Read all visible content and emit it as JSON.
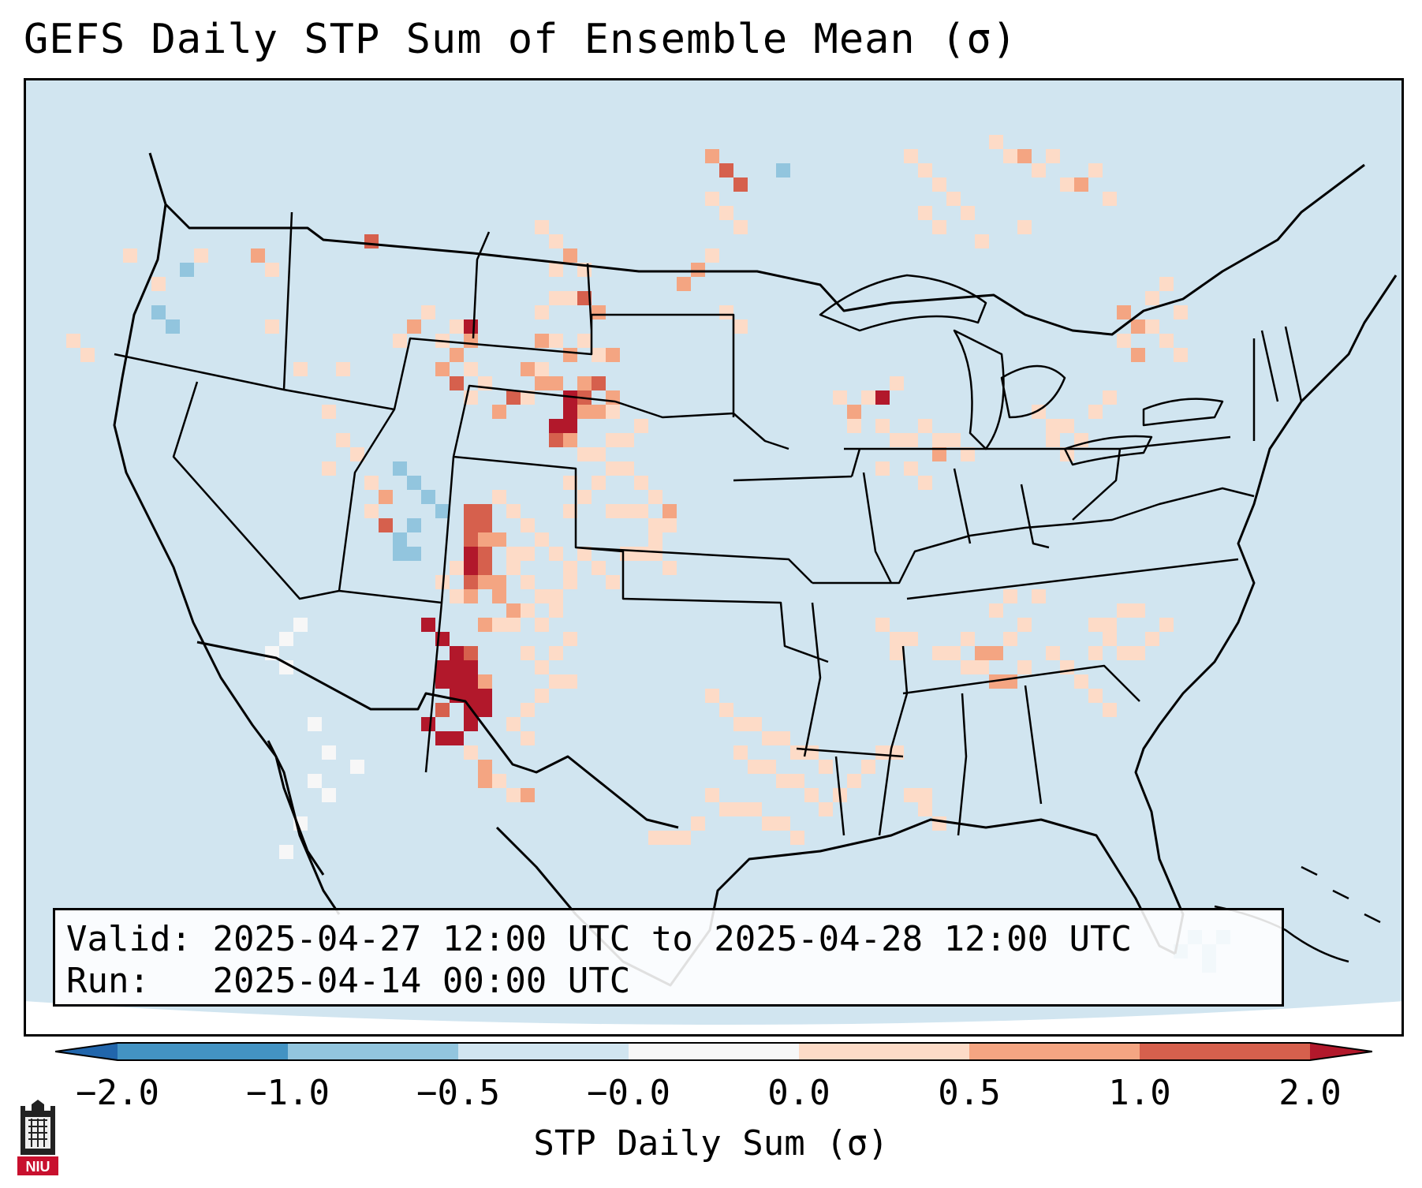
{
  "title": "GEFS Daily STP Sum of Ensemble Mean (σ)",
  "info": {
    "valid_label": "Valid:",
    "valid_value": "2025-04-27 12:00 UTC to 2025-04-28 12:00 UTC",
    "run_label": "Run:",
    "run_value": "2025-04-14 00:00 UTC"
  },
  "colorbar": {
    "label": "STP Daily Sum (σ)",
    "ticks": [
      "−2.0",
      "−1.0",
      "−0.5",
      "−0.0",
      "0.0",
      "0.5",
      "1.0",
      "2.0"
    ],
    "colors": [
      "#4393c3",
      "#92c5de",
      "#d1e5f0",
      "#f7f7f7",
      "#fddbc7",
      "#f4a582",
      "#d6604d"
    ],
    "under_color": "#2166ac",
    "over_color": "#b2182b"
  },
  "map": {
    "ocean_color": "#d1e5f0",
    "land_color": "#d1e5f0",
    "outline_color": "#000000"
  },
  "logo": {
    "text": "NIU",
    "color": "#c8102e"
  }
}
